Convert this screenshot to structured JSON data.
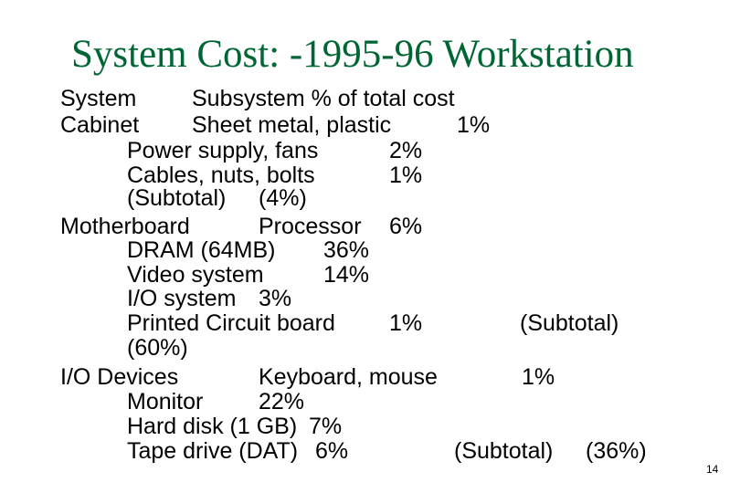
{
  "slide": {
    "title": "System Cost: -1995-96 Workstation",
    "page_number": "14"
  },
  "header": {
    "col1": "System",
    "col2": "Subsystem % of total cost"
  },
  "cabinet": {
    "name": "Cabinet",
    "items": [
      {
        "name": "Sheet metal, plastic",
        "pct": "1%"
      },
      {
        "name": "Power supply, fans",
        "pct": "2%"
      },
      {
        "name": "Cables, nuts, bolts",
        "pct": "1%"
      }
    ],
    "subtotal_label": "(Subtotal)",
    "subtotal_value": "(4%)"
  },
  "motherboard": {
    "name": "Motherboard",
    "items": [
      {
        "name": "Processor",
        "pct": "6%"
      },
      {
        "name": "DRAM (64MB)",
        "pct": "36%"
      },
      {
        "name": "Video system",
        "pct": "14%"
      },
      {
        "name": "I/O system",
        "pct": "3%"
      },
      {
        "name": "Printed Circuit board",
        "pct": "1%"
      }
    ],
    "subtotal_label": "(Subtotal)",
    "subtotal_value": "(60%)"
  },
  "io_devices": {
    "name": "I/O Devices",
    "items": [
      {
        "name": "Keyboard, mouse",
        "pct": "1%"
      },
      {
        "name": "Monitor",
        "pct": "22%"
      },
      {
        "name": "Hard disk (1 GB)",
        "pct": "7%"
      },
      {
        "name": "Tape drive (DAT)",
        "pct": "6%"
      }
    ],
    "subtotal_label": "(Subtotal)",
    "subtotal_value": "(36%)"
  },
  "colors": {
    "title": "#006633",
    "text": "#000000",
    "background": "#ffffff"
  }
}
